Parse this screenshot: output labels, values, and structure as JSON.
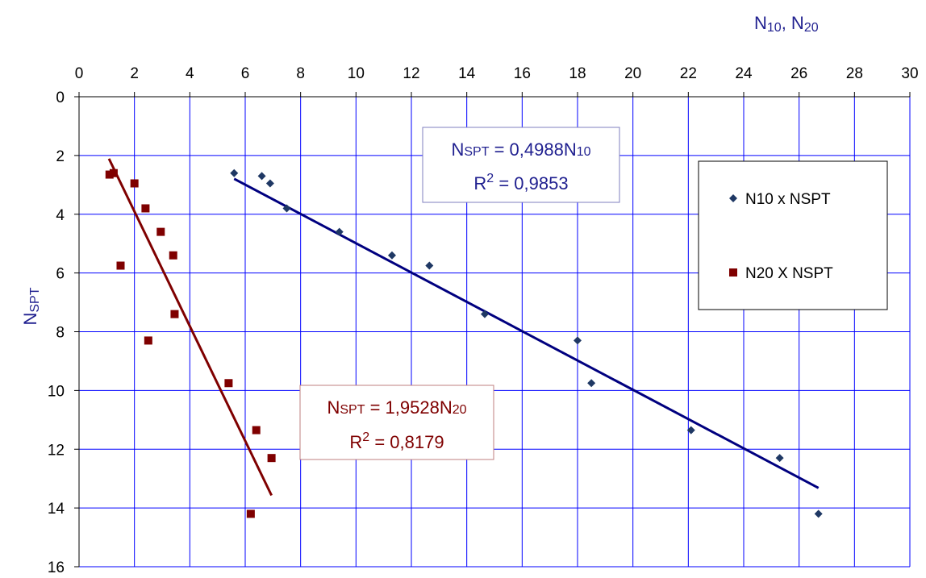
{
  "chart_data": {
    "type": "scatter",
    "xlabel": {
      "base": "N",
      "sub1": "10",
      "sep": ", ",
      "base2": "N",
      "sub2": "20"
    },
    "ylabel": {
      "base": "N",
      "sub": "SPT"
    },
    "xlim": [
      0,
      30
    ],
    "ylim": [
      0,
      16
    ],
    "y_inverted": true,
    "x_axis_position": "top",
    "grid": true,
    "legend_position": "right",
    "x_ticks": [
      "0",
      "2",
      "4",
      "6",
      "8",
      "10",
      "12",
      "14",
      "16",
      "18",
      "20",
      "22",
      "24",
      "26",
      "28",
      "30"
    ],
    "y_ticks": [
      "0",
      "2",
      "4",
      "6",
      "8",
      "10",
      "12",
      "14",
      "16"
    ],
    "series": [
      {
        "name": "N10 x NSPT",
        "marker": "diamond",
        "color": "#1f3864",
        "trend_color": "#00007f",
        "points": [
          {
            "x": 5.6,
            "y": 2.6
          },
          {
            "x": 6.6,
            "y": 2.7
          },
          {
            "x": 6.9,
            "y": 2.95
          },
          {
            "x": 7.5,
            "y": 3.8
          },
          {
            "x": 9.4,
            "y": 4.6
          },
          {
            "x": 11.3,
            "y": 5.4
          },
          {
            "x": 12.65,
            "y": 5.75
          },
          {
            "x": 14.65,
            "y": 7.4
          },
          {
            "x": 18.0,
            "y": 8.3
          },
          {
            "x": 18.5,
            "y": 9.75
          },
          {
            "x": 22.1,
            "y": 11.35
          },
          {
            "x": 25.3,
            "y": 12.3
          },
          {
            "x": 26.7,
            "y": 14.2
          }
        ],
        "trendline": {
          "slope": 0.4988,
          "x_start": 5.6,
          "x_end": 26.7
        },
        "equation": {
          "lhs_base": "N",
          "lhs_sub": "SPT",
          "mid": " = 0,4988N",
          "rhs_sub": "10",
          "r2_label": "R",
          "r2_sup": "2",
          "r2_value": " = 0,9853"
        }
      },
      {
        "name": "N20 X NSPT",
        "marker": "square",
        "color": "#7f0000",
        "trend_color": "#7f0000",
        "points": [
          {
            "x": 1.1,
            "y": 2.65
          },
          {
            "x": 1.25,
            "y": 2.6
          },
          {
            "x": 2.0,
            "y": 2.95
          },
          {
            "x": 1.5,
            "y": 5.75
          },
          {
            "x": 2.4,
            "y": 3.8
          },
          {
            "x": 2.95,
            "y": 4.6
          },
          {
            "x": 3.4,
            "y": 5.4
          },
          {
            "x": 3.45,
            "y": 7.4
          },
          {
            "x": 2.5,
            "y": 8.3
          },
          {
            "x": 5.4,
            "y": 9.75
          },
          {
            "x": 6.4,
            "y": 11.35
          },
          {
            "x": 6.95,
            "y": 12.3
          },
          {
            "x": 6.2,
            "y": 14.2
          }
        ],
        "trendline": {
          "slope": 1.9528,
          "x_start": 1.08,
          "x_end": 6.95
        },
        "equation": {
          "lhs_base": "N",
          "lhs_sub": "SPT",
          "mid": " = 1,9528N",
          "rhs_sub": "20",
          "r2_label": "R",
          "r2_sup": "2",
          "r2_value": " = 0,8179"
        }
      }
    ]
  }
}
